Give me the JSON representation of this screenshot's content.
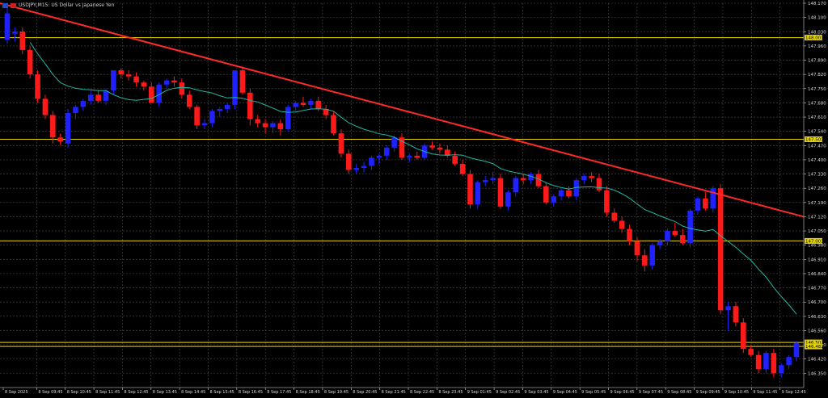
{
  "header": {
    "symbol_info": "USDJPY,M15:  US Dollar vs Japanese Yen",
    "flag_colors": [
      "#1e4fd0",
      "#d01e1e"
    ]
  },
  "colors": {
    "background": "#000000",
    "grid": "#4a4a4a",
    "bull": "#1f22ff",
    "bear": "#ff1a1a",
    "ma": "#1fb8a3",
    "hline": "#e6d400",
    "trendline": "#ff2a2a",
    "axis_text": "#d8d8d8",
    "tag_bg": "#e6d400",
    "tag_text": "#000000"
  },
  "chart_data": {
    "type": "candlestick",
    "symbol": "USDJPY",
    "timeframe": "M15",
    "ylim": [
      146.28,
      148.17
    ],
    "y_ticks": [
      "148.170",
      "148.100",
      "148.030",
      "147.960",
      "147.890",
      "147.820",
      "147.750",
      "147.680",
      "147.610",
      "147.540",
      "147.470",
      "147.400",
      "147.330",
      "147.260",
      "147.190",
      "147.120",
      "147.050",
      "146.980",
      "146.910",
      "146.840",
      "146.770",
      "146.700",
      "146.630",
      "146.560",
      "146.490",
      "146.420",
      "146.350"
    ],
    "x_ticks": [
      "8 Sep 2025",
      "8 Sep 09:45",
      "8 Sep 10:45",
      "8 Sep 11:45",
      "8 Sep 12:45",
      "8 Sep 13:45",
      "8 Sep 14:45",
      "8 Sep 15:45",
      "8 Sep 16:45",
      "8 Sep 17:45",
      "8 Sep 18:45",
      "8 Sep 19:45",
      "8 Sep 20:45",
      "8 Sep 21:45",
      "8 Sep 22:45",
      "8 Sep 23:45",
      "9 Sep 01:45",
      "9 Sep 02:45",
      "9 Sep 03:45",
      "9 Sep 04:45",
      "9 Sep 05:45",
      "9 Sep 06:45",
      "9 Sep 07:45",
      "9 Sep 08:45",
      "9 Sep 09:45",
      "9 Sep 10:45",
      "9 Sep 11:45",
      "9 Sep 12:45"
    ],
    "horizontal_levels": [
      {
        "price": 148.001,
        "label": "148.001"
      },
      {
        "price": 147.501,
        "label": "147.501"
      },
      {
        "price": 147.001,
        "label": "147.001"
      },
      {
        "price": 146.502,
        "label": "146.502"
      },
      {
        "price": 146.482,
        "label": "146.482"
      }
    ],
    "trendline": {
      "from": 148.17,
      "to": 147.12
    },
    "candles": [
      {
        "o": 147.99,
        "h": 148.16,
        "l": 147.97,
        "c": 148.12
      },
      {
        "o": 148.02,
        "h": 148.05,
        "l": 147.98,
        "c": 148.03
      },
      {
        "o": 148.03,
        "h": 148.05,
        "l": 147.92,
        "c": 147.94
      },
      {
        "o": 147.94,
        "h": 147.96,
        "l": 147.8,
        "c": 147.82
      },
      {
        "o": 147.82,
        "h": 147.84,
        "l": 147.68,
        "c": 147.7
      },
      {
        "o": 147.7,
        "h": 147.72,
        "l": 147.6,
        "c": 147.62
      },
      {
        "o": 147.62,
        "h": 147.64,
        "l": 147.48,
        "c": 147.51
      },
      {
        "o": 147.51,
        "h": 147.53,
        "l": 147.47,
        "c": 147.49
      },
      {
        "o": 147.48,
        "h": 147.65,
        "l": 147.46,
        "c": 147.63
      },
      {
        "o": 147.63,
        "h": 147.67,
        "l": 147.6,
        "c": 147.66
      },
      {
        "o": 147.66,
        "h": 147.7,
        "l": 147.64,
        "c": 147.69
      },
      {
        "o": 147.69,
        "h": 147.74,
        "l": 147.67,
        "c": 147.72
      },
      {
        "o": 147.72,
        "h": 147.74,
        "l": 147.68,
        "c": 147.69
      },
      {
        "o": 147.69,
        "h": 147.75,
        "l": 147.67,
        "c": 147.74
      },
      {
        "o": 147.74,
        "h": 147.84,
        "l": 147.72,
        "c": 147.84
      },
      {
        "o": 147.84,
        "h": 147.85,
        "l": 147.8,
        "c": 147.82
      },
      {
        "o": 147.82,
        "h": 147.84,
        "l": 147.79,
        "c": 147.81
      },
      {
        "o": 147.81,
        "h": 147.83,
        "l": 147.76,
        "c": 147.78
      },
      {
        "o": 147.78,
        "h": 147.79,
        "l": 147.74,
        "c": 147.76
      },
      {
        "o": 147.76,
        "h": 147.78,
        "l": 147.68,
        "c": 147.68
      },
      {
        "o": 147.68,
        "h": 147.78,
        "l": 147.66,
        "c": 147.77
      },
      {
        "o": 147.77,
        "h": 147.8,
        "l": 147.75,
        "c": 147.79
      },
      {
        "o": 147.79,
        "h": 147.81,
        "l": 147.76,
        "c": 147.78
      },
      {
        "o": 147.78,
        "h": 147.8,
        "l": 147.7,
        "c": 147.72
      },
      {
        "o": 147.72,
        "h": 147.74,
        "l": 147.65,
        "c": 147.66
      },
      {
        "o": 147.66,
        "h": 147.67,
        "l": 147.55,
        "c": 147.57
      },
      {
        "o": 147.57,
        "h": 147.6,
        "l": 147.55,
        "c": 147.58
      },
      {
        "o": 147.58,
        "h": 147.65,
        "l": 147.56,
        "c": 147.64
      },
      {
        "o": 147.64,
        "h": 147.66,
        "l": 147.61,
        "c": 147.65
      },
      {
        "o": 147.65,
        "h": 147.68,
        "l": 147.63,
        "c": 147.67
      },
      {
        "o": 147.67,
        "h": 147.84,
        "l": 147.65,
        "c": 147.84
      },
      {
        "o": 147.84,
        "h": 147.86,
        "l": 147.72,
        "c": 147.73
      },
      {
        "o": 147.73,
        "h": 147.75,
        "l": 147.57,
        "c": 147.6
      },
      {
        "o": 147.6,
        "h": 147.62,
        "l": 147.56,
        "c": 147.58
      },
      {
        "o": 147.58,
        "h": 147.6,
        "l": 147.53,
        "c": 147.56
      },
      {
        "o": 147.56,
        "h": 147.59,
        "l": 147.53,
        "c": 147.58
      },
      {
        "o": 147.58,
        "h": 147.6,
        "l": 147.52,
        "c": 147.55
      },
      {
        "o": 147.55,
        "h": 147.67,
        "l": 147.54,
        "c": 147.66
      },
      {
        "o": 147.66,
        "h": 147.69,
        "l": 147.64,
        "c": 147.68
      },
      {
        "o": 147.68,
        "h": 147.71,
        "l": 147.66,
        "c": 147.67
      },
      {
        "o": 147.67,
        "h": 147.7,
        "l": 147.65,
        "c": 147.69
      },
      {
        "o": 147.69,
        "h": 147.71,
        "l": 147.64,
        "c": 147.65
      },
      {
        "o": 147.65,
        "h": 147.67,
        "l": 147.6,
        "c": 147.62
      },
      {
        "o": 147.62,
        "h": 147.64,
        "l": 147.52,
        "c": 147.53
      },
      {
        "o": 147.53,
        "h": 147.55,
        "l": 147.41,
        "c": 147.43
      },
      {
        "o": 147.43,
        "h": 147.45,
        "l": 147.33,
        "c": 147.35
      },
      {
        "o": 147.35,
        "h": 147.38,
        "l": 147.33,
        "c": 147.36
      },
      {
        "o": 147.36,
        "h": 147.39,
        "l": 147.34,
        "c": 147.37
      },
      {
        "o": 147.37,
        "h": 147.42,
        "l": 147.35,
        "c": 147.41
      },
      {
        "o": 147.41,
        "h": 147.43,
        "l": 147.38,
        "c": 147.42
      },
      {
        "o": 147.42,
        "h": 147.47,
        "l": 147.4,
        "c": 147.46
      },
      {
        "o": 147.46,
        "h": 147.52,
        "l": 147.44,
        "c": 147.51
      },
      {
        "o": 147.51,
        "h": 147.53,
        "l": 147.4,
        "c": 147.41
      },
      {
        "o": 147.41,
        "h": 147.43,
        "l": 147.39,
        "c": 147.42
      },
      {
        "o": 147.42,
        "h": 147.44,
        "l": 147.4,
        "c": 147.41
      },
      {
        "o": 147.41,
        "h": 147.48,
        "l": 147.4,
        "c": 147.47
      },
      {
        "o": 147.47,
        "h": 147.49,
        "l": 147.45,
        "c": 147.46
      },
      {
        "o": 147.46,
        "h": 147.48,
        "l": 147.43,
        "c": 147.45
      },
      {
        "o": 147.45,
        "h": 147.47,
        "l": 147.41,
        "c": 147.42
      },
      {
        "o": 147.42,
        "h": 147.44,
        "l": 147.37,
        "c": 147.38
      },
      {
        "o": 147.38,
        "h": 147.4,
        "l": 147.32,
        "c": 147.33
      },
      {
        "o": 147.33,
        "h": 147.35,
        "l": 147.16,
        "c": 147.18
      },
      {
        "o": 147.18,
        "h": 147.3,
        "l": 147.16,
        "c": 147.29
      },
      {
        "o": 147.29,
        "h": 147.32,
        "l": 147.27,
        "c": 147.3
      },
      {
        "o": 147.3,
        "h": 147.34,
        "l": 147.28,
        "c": 147.31
      },
      {
        "o": 147.31,
        "h": 147.33,
        "l": 147.16,
        "c": 147.17
      },
      {
        "o": 147.17,
        "h": 147.25,
        "l": 147.15,
        "c": 147.24
      },
      {
        "o": 147.24,
        "h": 147.32,
        "l": 147.22,
        "c": 147.31
      },
      {
        "o": 147.31,
        "h": 147.33,
        "l": 147.28,
        "c": 147.3
      },
      {
        "o": 147.3,
        "h": 147.34,
        "l": 147.28,
        "c": 147.33
      },
      {
        "o": 147.33,
        "h": 147.35,
        "l": 147.26,
        "c": 147.27
      },
      {
        "o": 147.27,
        "h": 147.29,
        "l": 147.18,
        "c": 147.19
      },
      {
        "o": 147.19,
        "h": 147.23,
        "l": 147.17,
        "c": 147.22
      },
      {
        "o": 147.22,
        "h": 147.26,
        "l": 147.2,
        "c": 147.25
      },
      {
        "o": 147.25,
        "h": 147.27,
        "l": 147.21,
        "c": 147.22
      },
      {
        "o": 147.22,
        "h": 147.31,
        "l": 147.2,
        "c": 147.3
      },
      {
        "o": 147.3,
        "h": 147.33,
        "l": 147.28,
        "c": 147.32
      },
      {
        "o": 147.32,
        "h": 147.34,
        "l": 147.29,
        "c": 147.31
      },
      {
        "o": 147.31,
        "h": 147.33,
        "l": 147.24,
        "c": 147.25
      },
      {
        "o": 147.25,
        "h": 147.27,
        "l": 147.12,
        "c": 147.14
      },
      {
        "o": 147.14,
        "h": 147.16,
        "l": 147.09,
        "c": 147.1
      },
      {
        "o": 147.1,
        "h": 147.12,
        "l": 147.04,
        "c": 147.06
      },
      {
        "o": 147.06,
        "h": 147.08,
        "l": 146.98,
        "c": 147.0
      },
      {
        "o": 147.0,
        "h": 147.02,
        "l": 146.9,
        "c": 146.93
      },
      {
        "o": 146.93,
        "h": 146.96,
        "l": 146.85,
        "c": 146.88
      },
      {
        "o": 146.88,
        "h": 146.99,
        "l": 146.86,
        "c": 146.98
      },
      {
        "o": 146.98,
        "h": 147.01,
        "l": 146.96,
        "c": 147.0
      },
      {
        "o": 147.0,
        "h": 147.06,
        "l": 146.98,
        "c": 147.05
      },
      {
        "o": 147.05,
        "h": 147.09,
        "l": 147.02,
        "c": 147.03
      },
      {
        "o": 147.03,
        "h": 147.06,
        "l": 146.98,
        "c": 146.99
      },
      {
        "o": 146.99,
        "h": 147.16,
        "l": 146.97,
        "c": 147.15
      },
      {
        "o": 147.15,
        "h": 147.22,
        "l": 147.13,
        "c": 147.21
      },
      {
        "o": 147.21,
        "h": 147.24,
        "l": 147.15,
        "c": 147.16
      },
      {
        "o": 147.16,
        "h": 147.27,
        "l": 147.14,
        "c": 147.26
      },
      {
        "o": 147.26,
        "h": 147.28,
        "l": 146.64,
        "c": 146.66
      },
      {
        "o": 146.66,
        "h": 146.7,
        "l": 146.56,
        "c": 146.68
      },
      {
        "o": 146.68,
        "h": 146.7,
        "l": 146.58,
        "c": 146.6
      },
      {
        "o": 146.6,
        "h": 146.62,
        "l": 146.45,
        "c": 146.47
      },
      {
        "o": 146.47,
        "h": 146.49,
        "l": 146.43,
        "c": 146.44
      },
      {
        "o": 146.44,
        "h": 146.46,
        "l": 146.35,
        "c": 146.37
      },
      {
        "o": 146.37,
        "h": 146.46,
        "l": 146.35,
        "c": 146.45
      },
      {
        "o": 146.45,
        "h": 146.47,
        "l": 146.33,
        "c": 146.35
      },
      {
        "o": 146.35,
        "h": 146.4,
        "l": 146.33,
        "c": 146.39
      },
      {
        "o": 146.39,
        "h": 146.44,
        "l": 146.37,
        "c": 146.43
      },
      {
        "o": 146.43,
        "h": 146.51,
        "l": 146.41,
        "c": 146.5
      }
    ]
  }
}
